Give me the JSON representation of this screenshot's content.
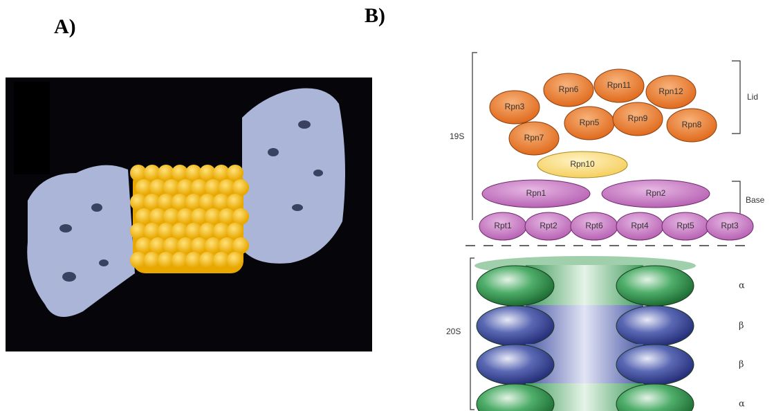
{
  "panel_a": {
    "label": "A)"
  },
  "panel_b": {
    "label": "B)",
    "complex_19s": {
      "label": "19S",
      "lid": {
        "label": "Lid",
        "subunits": [
          "Rpn3",
          "Rpn6",
          "Rpn11",
          "Rpn12",
          "Rpn5",
          "Rpn9",
          "Rpn8",
          "Rpn7"
        ]
      },
      "linker": "Rpn10",
      "base": {
        "label": "Base",
        "subunits": [
          "Rpn1",
          "Rpn2",
          "Rpt1",
          "Rpt2",
          "Rpt6",
          "Rpt4",
          "Rpt5",
          "Rpt3"
        ]
      }
    },
    "complex_20s": {
      "label": "20S",
      "rings": [
        "α",
        "β",
        "β",
        "α"
      ]
    }
  }
}
